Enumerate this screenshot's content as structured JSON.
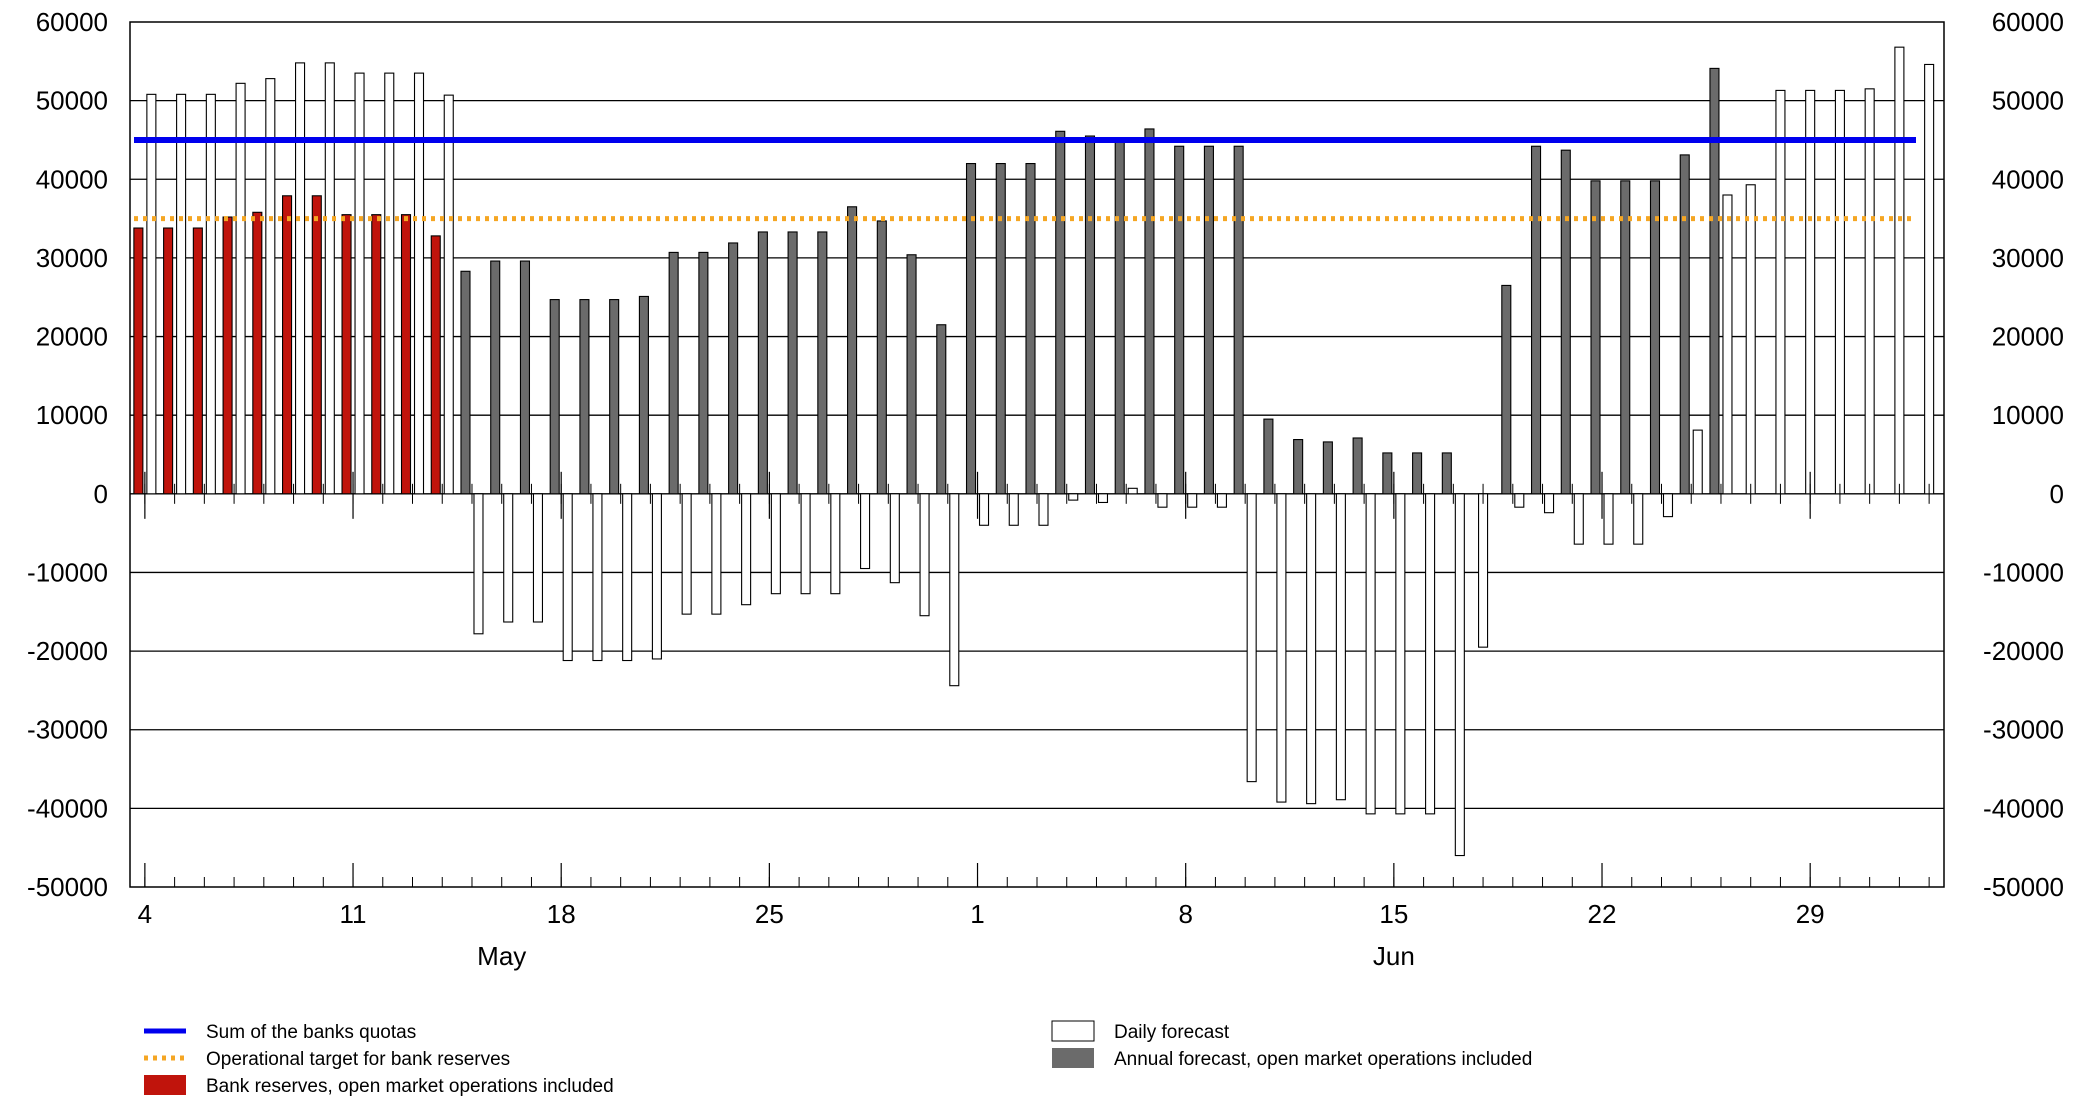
{
  "chart_data": {
    "type": "bar",
    "title": "",
    "xlabel": "",
    "ylabel": "",
    "ylim": [
      -50000,
      60000
    ],
    "yticks": [
      60000,
      50000,
      40000,
      30000,
      20000,
      10000,
      0,
      -10000,
      -20000,
      -30000,
      -40000,
      -50000
    ],
    "ytick_labels": [
      "60000",
      "50000",
      "40000",
      "30000",
      "20000",
      "10000",
      "0",
      "-10000",
      "-20000",
      "-30000",
      "-40000",
      "-50000"
    ],
    "grid": true,
    "x_range": [
      "2025-05-04",
      "2025-07-04"
    ],
    "xticks": [
      {
        "date": "2025-05-04",
        "label": "4"
      },
      {
        "date": "2025-05-11",
        "label": "11"
      },
      {
        "date": "2025-05-18",
        "label": "18"
      },
      {
        "date": "2025-05-25",
        "label": "25"
      },
      {
        "date": "2025-06-01",
        "label": "1"
      },
      {
        "date": "2025-06-08",
        "label": "8"
      },
      {
        "date": "2025-06-15",
        "label": "15"
      },
      {
        "date": "2025-06-22",
        "label": "22"
      },
      {
        "date": "2025-06-29",
        "label": "29"
      }
    ],
    "month_labels": [
      {
        "date": "2025-05-16",
        "label": "May"
      },
      {
        "date": "2025-06-15",
        "label": "Jun"
      }
    ],
    "dates": [
      "2025-05-04",
      "2025-05-05",
      "2025-05-06",
      "2025-05-07",
      "2025-05-08",
      "2025-05-09",
      "2025-05-10",
      "2025-05-11",
      "2025-05-12",
      "2025-05-13",
      "2025-05-14",
      "2025-05-15",
      "2025-05-16",
      "2025-05-17",
      "2025-05-18",
      "2025-05-19",
      "2025-05-20",
      "2025-05-21",
      "2025-05-22",
      "2025-05-23",
      "2025-05-24",
      "2025-05-25",
      "2025-05-26",
      "2025-05-27",
      "2025-05-28",
      "2025-05-29",
      "2025-05-30",
      "2025-05-31",
      "2025-06-01",
      "2025-06-02",
      "2025-06-03",
      "2025-06-04",
      "2025-06-05",
      "2025-06-06",
      "2025-06-07",
      "2025-06-08",
      "2025-06-09",
      "2025-06-10",
      "2025-06-11",
      "2025-06-12",
      "2025-06-13",
      "2025-06-14",
      "2025-06-15",
      "2025-06-16",
      "2025-06-17",
      "2025-06-18",
      "2025-06-19",
      "2025-06-20",
      "2025-06-21",
      "2025-06-22",
      "2025-06-23",
      "2025-06-24",
      "2025-06-25",
      "2025-06-26",
      "2025-06-27",
      "2025-06-28",
      "2025-06-29",
      "2025-06-30",
      "2025-07-01",
      "2025-07-02",
      "2025-07-03"
    ],
    "series": [
      {
        "name": "Sum of the banks quotas",
        "type": "line",
        "style": "solid",
        "color": "#0000ee",
        "value": 45000,
        "x_range": [
          "2025-05-04",
          "2025-07-04"
        ]
      },
      {
        "name": "Operational target for bank reserves",
        "type": "line",
        "style": "dotted",
        "color": "#f5a623",
        "value": 35000,
        "x_range": [
          "2025-05-04",
          "2025-07-04"
        ]
      },
      {
        "name": "Bank reserves, open market operations included",
        "type": "bar",
        "color": "#c0140c",
        "values": [
          33800,
          33800,
          33800,
          35200,
          35800,
          37900,
          37900,
          35500,
          35500,
          35500,
          32800,
          null,
          null,
          null,
          null,
          null,
          null,
          null,
          null,
          null,
          null,
          null,
          null,
          null,
          null,
          null,
          null,
          null,
          null,
          null,
          null,
          null,
          null,
          null,
          null,
          null,
          null,
          null,
          null,
          null,
          null,
          null,
          null,
          null,
          null,
          null,
          null,
          null,
          null,
          null,
          null,
          null,
          null,
          null,
          null,
          null,
          null,
          null,
          null,
          null,
          null
        ]
      },
      {
        "name": "Daily forecast",
        "type": "bar",
        "color": "#ffffff",
        "values": [
          50800,
          50800,
          50800,
          52200,
          52800,
          54800,
          54800,
          53500,
          53500,
          53500,
          50700,
          -17800,
          -16300,
          -16300,
          -21200,
          -21200,
          -21200,
          -21000,
          -15300,
          -15300,
          -14100,
          -12700,
          -12700,
          -12700,
          -9500,
          -11300,
          -15500,
          -24400,
          -4000,
          -4000,
          -4000,
          -800,
          -1100,
          700,
          -1700,
          -1700,
          -1700,
          -36600,
          -39200,
          -39400,
          -38900,
          -40700,
          -40700,
          -40700,
          -46000,
          -19500,
          -1700,
          -2400,
          -6400,
          -6400,
          -6400,
          -2900,
          8100,
          38000,
          39300,
          51300,
          51300,
          51300,
          51500,
          56800,
          54600
        ]
      },
      {
        "name": "Annual forecast, open market operations included",
        "type": "bar",
        "color": "#6b6b6b",
        "values": [
          null,
          null,
          null,
          null,
          null,
          null,
          null,
          null,
          null,
          null,
          null,
          28300,
          29600,
          29600,
          24700,
          24700,
          24700,
          25100,
          30700,
          30700,
          31900,
          33300,
          33300,
          33300,
          36500,
          34700,
          30400,
          21500,
          42000,
          42000,
          42000,
          46100,
          45500,
          45000,
          46400,
          44200,
          44200,
          44200,
          9500,
          6900,
          6600,
          7100,
          5200,
          5200,
          5200,
          null,
          26500,
          44200,
          43700,
          39800,
          39800,
          39800,
          43100,
          54100,
          null,
          null,
          null,
          null,
          null,
          null,
          null
        ]
      }
    ],
    "legend": {
      "placement": "bottom",
      "entries": [
        {
          "label": "Sum of the banks quotas",
          "kind": "line-solid",
          "color": "#0000ee"
        },
        {
          "label": "Operational target for bank reserves",
          "kind": "line-dotted",
          "color": "#f5a623"
        },
        {
          "label": "Bank reserves, open market operations included",
          "kind": "box",
          "color": "#c0140c"
        },
        {
          "label": "Daily forecast",
          "kind": "box",
          "color": "#ffffff"
        },
        {
          "label": "Annual forecast, open market operations included",
          "kind": "box",
          "color": "#6b6b6b"
        }
      ]
    }
  }
}
